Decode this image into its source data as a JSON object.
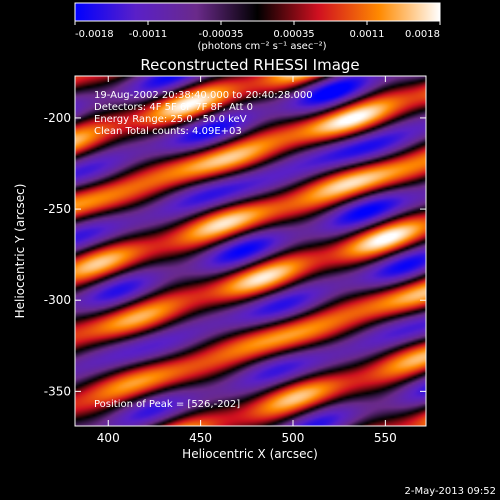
{
  "chart_data": {
    "type": "heatmap",
    "title": "Reconstructed RHESSI Image",
    "xlabel": "Heliocentric X (arcsec)",
    "ylabel": "Heliocentric Y (arcsec)",
    "xlim": [
      382,
      572
    ],
    "ylim": [
      -369,
      -177
    ],
    "x_ticks": [
      400,
      450,
      500,
      550
    ],
    "y_ticks": [
      -200,
      -250,
      -300,
      -350
    ],
    "colorbar": {
      "min": -0.0018,
      "max": 0.0018,
      "ticks": [
        "-0.0018",
        "-0.0011",
        "-0.00035",
        "0.00035",
        "0.0011",
        "0.0018"
      ],
      "unit_label": "(photons cm⁻² s⁻¹ asec⁻²)",
      "colors": [
        "#0000ff",
        "#5a20c8",
        "#6a2a8a",
        "#000000",
        "#d01020",
        "#ff8a00",
        "#ffffff"
      ]
    },
    "annotations": [
      "19-Aug-2002 20:38:40.000 to 20:40:28.000",
      "Detectors: 4F 5F 6F 7F 8F, Att 0",
      "Energy Range: 25.0 - 50.0 keV",
      "Clean     Total counts: 4.09E+03"
    ],
    "peak_label": "Position of Peak = [526,-202]",
    "peak": [
      526,
      -202
    ],
    "pattern": {
      "fringe_direction": "diagonal, rising to the right",
      "description": "periodic stripe / fringe pattern of alternating positive and negative flux"
    }
  },
  "footer": {
    "timestamp": "2-May-2013 09:52"
  }
}
